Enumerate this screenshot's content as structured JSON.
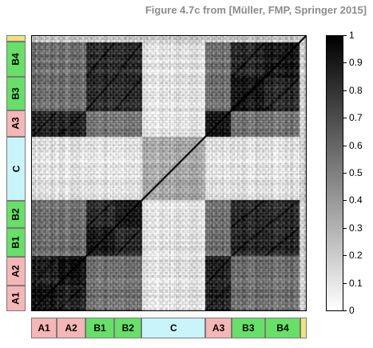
{
  "caption": "Figure 4.7c from [Müller, FMP, Springer 2015]",
  "chart_data": {
    "type": "heatmap",
    "description_free": true,
    "colormap": "gray-inverted",
    "value_range": [
      0,
      1
    ],
    "colorbar_ticks": [
      "0",
      "0.1",
      "0.2",
      "0.3",
      "0.4",
      "0.5",
      "0.6",
      "0.7",
      "0.8",
      "0.9",
      "1"
    ],
    "segments": [
      {
        "label": "A1",
        "start": 0.0,
        "end": 0.093,
        "color": "#f4b6b6"
      },
      {
        "label": "A2",
        "start": 0.093,
        "end": 0.197,
        "color": "#f4b6b6"
      },
      {
        "label": "B1",
        "start": 0.197,
        "end": 0.302,
        "color": "#66e066"
      },
      {
        "label": "B2",
        "start": 0.302,
        "end": 0.401,
        "color": "#66e066"
      },
      {
        "label": "C",
        "start": 0.401,
        "end": 0.633,
        "color": "#c8f4fa"
      },
      {
        "label": "A3",
        "start": 0.633,
        "end": 0.727,
        "color": "#f4b6b6"
      },
      {
        "label": "B3",
        "start": 0.727,
        "end": 0.849,
        "color": "#66e066"
      },
      {
        "label": "B4",
        "start": 0.849,
        "end": 0.977,
        "color": "#66e066"
      },
      {
        "label": "",
        "start": 0.977,
        "end": 1.0,
        "color": "#f2e27a"
      }
    ],
    "segment_similarity": {
      "A1-A1": 0.92,
      "A1-A2": 0.85,
      "A1-A3": 0.85,
      "A2-A3": 0.85,
      "B1-B1": 0.9,
      "B1-B2": 0.82,
      "B1-B3": 0.82,
      "B1-B4": 0.82,
      "B2-B3": 0.82,
      "B2-B4": 0.82,
      "B3-B4": 0.82,
      "A-B": 0.55,
      "C-C": 0.35,
      "C-other": 0.12,
      "tail": 0.2
    }
  }
}
